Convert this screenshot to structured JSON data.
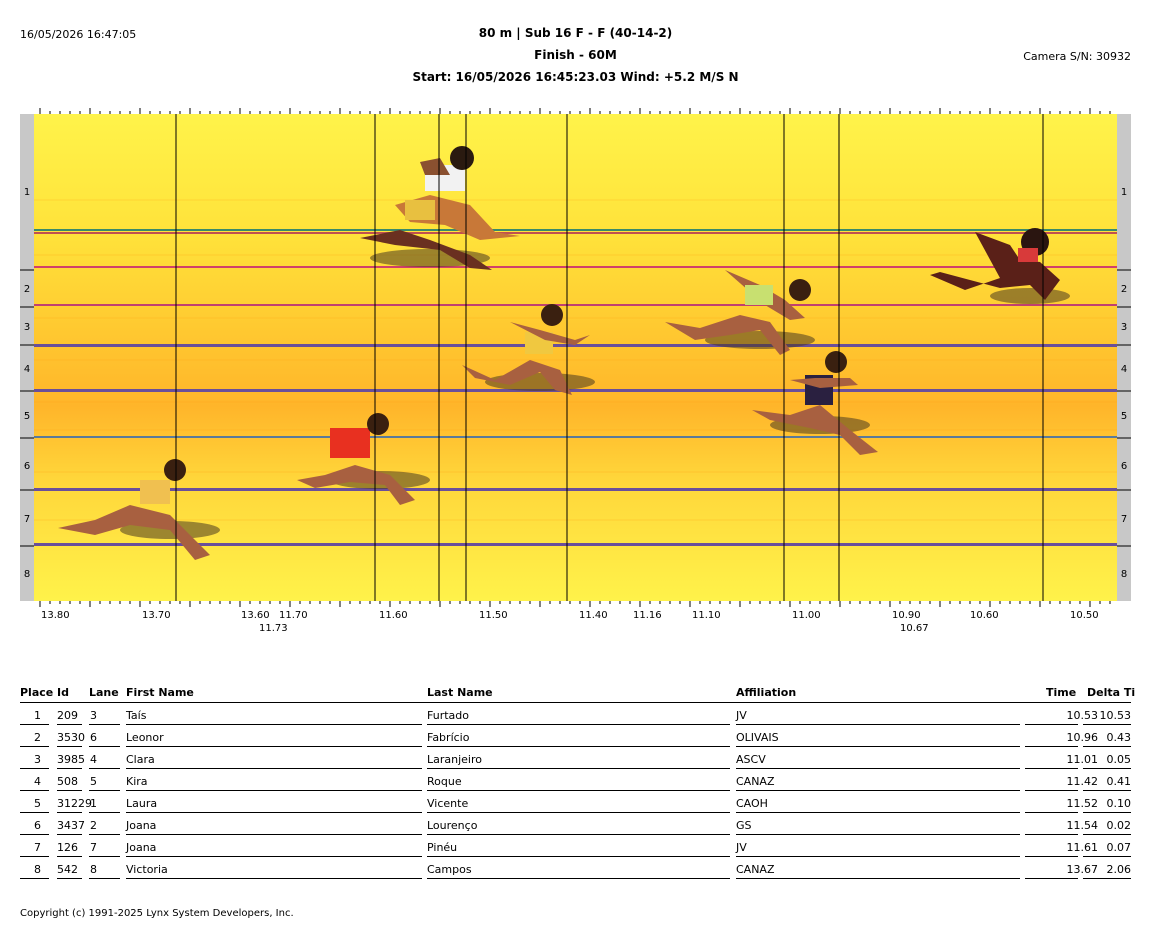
{
  "header": {
    "datetime": "16/05/2026 16:47:05",
    "title": "80 m | Sub 16 F - F (40-14-2)",
    "subtitle": "Finish - 60M",
    "start_wind": "Start: 16/05/2026 16:45:23.03    Wind: +5.2 M/S N",
    "camera": "Camera S/N: 30932"
  },
  "photo": {
    "lane_labels": [
      "1",
      "2",
      "3",
      "4",
      "5",
      "6",
      "7",
      "8"
    ],
    "time_ticks": [
      {
        "label": "13.80",
        "sub": ""
      },
      {
        "label": "13.70",
        "sub": ""
      },
      {
        "label": "13.60",
        "sub": "11.73"
      },
      {
        "label": "11.70",
        "sub": ""
      },
      {
        "label": "11.60",
        "sub": ""
      },
      {
        "label": "11.50",
        "sub": ""
      },
      {
        "label": "11.40",
        "sub": ""
      },
      {
        "label": "11.16",
        "sub": ""
      },
      {
        "label": "11.10",
        "sub": ""
      },
      {
        "label": "11.00",
        "sub": ""
      },
      {
        "label": "10.90",
        "sub": "10.67"
      },
      {
        "label": "10.60",
        "sub": ""
      },
      {
        "label": "10.50",
        "sub": ""
      }
    ],
    "colors": {
      "bg_top": "#fff34a",
      "bg_mid": "#ffb52a",
      "lane_line": "#6a4f9a",
      "side": "#c8c8c8"
    }
  },
  "table": {
    "headers": {
      "place": "Place",
      "id": "Id",
      "lane": "Lane",
      "first": "First Name",
      "last": "Last Name",
      "aff": "Affiliation",
      "time": "Time",
      "delta": "Delta Ti"
    },
    "rows": [
      {
        "place": "1",
        "id": "209",
        "lane": "3",
        "first": "Taís",
        "last": "Furtado",
        "aff": "JV",
        "time": "10.53",
        "delta": "10.53"
      },
      {
        "place": "2",
        "id": "3530",
        "lane": "6",
        "first": "Leonor",
        "last": "Fabrício",
        "aff": "OLIVAIS",
        "time": "10.96",
        "delta": "0.43"
      },
      {
        "place": "3",
        "id": "3985",
        "lane": "4",
        "first": "Clara",
        "last": "Laranjeiro",
        "aff": "ASCV",
        "time": "11.01",
        "delta": "0.05"
      },
      {
        "place": "4",
        "id": "508",
        "lane": "5",
        "first": "Kira",
        "last": "Roque",
        "aff": "CANAZ",
        "time": "11.42",
        "delta": "0.41"
      },
      {
        "place": "5",
        "id": "31229",
        "lane": "1",
        "first": "Laura",
        "last": "Vicente",
        "aff": "CAOH",
        "time": "11.52",
        "delta": "0.10"
      },
      {
        "place": "6",
        "id": "3437",
        "lane": "2",
        "first": "Joana",
        "last": "Lourenço",
        "aff": "GS",
        "time": "11.54",
        "delta": "0.02"
      },
      {
        "place": "7",
        "id": "126",
        "lane": "7",
        "first": "Joana",
        "last": "Pinéu",
        "aff": "JV",
        "time": "11.61",
        "delta": "0.07"
      },
      {
        "place": "8",
        "id": "542",
        "lane": "8",
        "first": "Victoria",
        "last": "Campos",
        "aff": "CANAZ",
        "time": "13.67",
        "delta": "2.06"
      }
    ]
  },
  "footer": {
    "copyright": "Copyright (c) 1991-2025 Lynx System Developers, Inc."
  }
}
